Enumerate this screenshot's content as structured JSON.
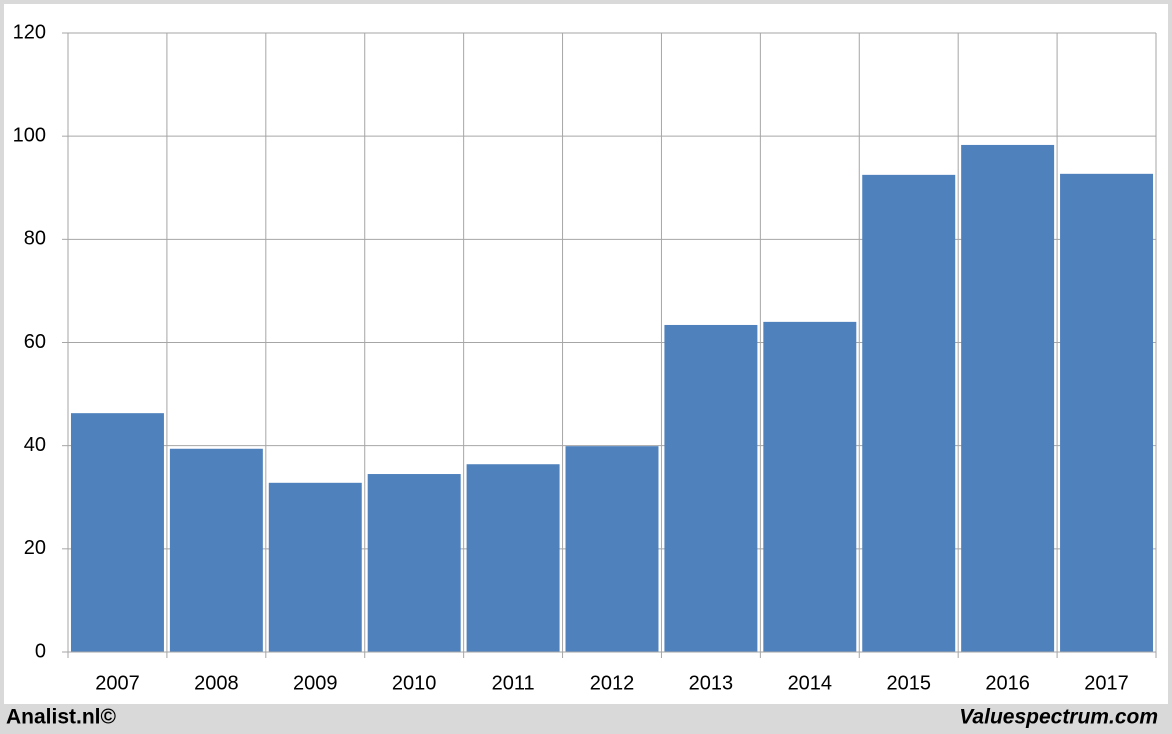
{
  "chart_data": {
    "type": "bar",
    "categories": [
      "2007",
      "2008",
      "2009",
      "2010",
      "2011",
      "2012",
      "2013",
      "2014",
      "2015",
      "2016",
      "2017"
    ],
    "values": [
      46.3,
      39.4,
      32.8,
      34.5,
      36.4,
      39.9,
      63.4,
      64.0,
      92.5,
      98.3,
      92.7
    ],
    "color": "#4f81bd",
    "ylim": [
      0,
      120
    ],
    "yticks": [
      0,
      20,
      40,
      60,
      80,
      100,
      120
    ],
    "grid": true,
    "footer_left": "Analist.nl©",
    "footer_right": "Valuespectrum.com"
  }
}
